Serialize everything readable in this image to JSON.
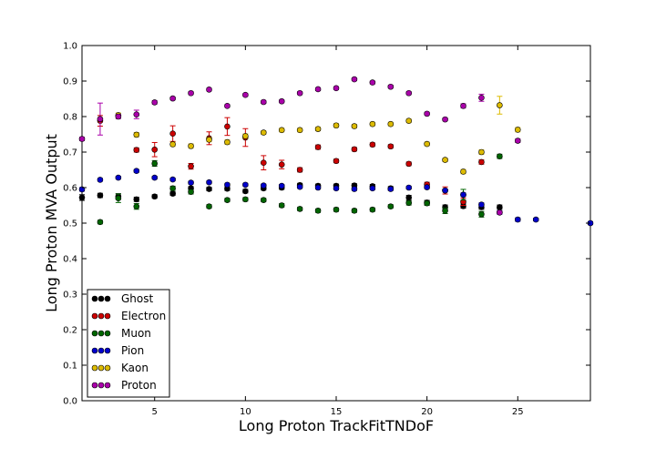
{
  "chart_data": {
    "type": "scatter",
    "title": "",
    "xlabel": "Long Proton TrackFitTNDoF",
    "ylabel": "Long Proton MVA Output",
    "xlim": [
      1,
      29
    ],
    "ylim": [
      0.0,
      1.0
    ],
    "xticks": [
      5,
      10,
      15,
      20,
      25
    ],
    "xtick_labels": [
      "5",
      "10",
      "15",
      "20",
      "25"
    ],
    "yticks": [
      0.0,
      0.1,
      0.2,
      0.3,
      0.4,
      0.5,
      0.6,
      0.7,
      0.8,
      0.9,
      1.0
    ],
    "ytick_labels": [
      "0.0",
      "0.1",
      "0.2",
      "0.3",
      "0.4",
      "0.5",
      "0.6",
      "0.7",
      "0.8",
      "0.9",
      "1.0"
    ],
    "grid": false,
    "legend": "lower-left",
    "series": [
      {
        "name": "Ghost",
        "color": "#000000",
        "points": [
          {
            "x": 1,
            "y": 0.572,
            "err": 0.008
          },
          {
            "x": 2,
            "y": 0.578,
            "err": 0.006
          },
          {
            "x": 3,
            "y": 0.575,
            "err": 0.008
          },
          {
            "x": 4,
            "y": 0.567,
            "err": 0.006
          },
          {
            "x": 5,
            "y": 0.575,
            "err": 0.005
          },
          {
            "x": 6,
            "y": 0.583,
            "err": 0.005
          },
          {
            "x": 7,
            "y": 0.598,
            "err": 0.005
          },
          {
            "x": 8,
            "y": 0.596,
            "err": 0.005
          },
          {
            "x": 9,
            "y": 0.597,
            "err": 0.005
          },
          {
            "x": 10,
            "y": 0.59,
            "err": 0.005
          },
          {
            "x": 11,
            "y": 0.598,
            "err": 0.005
          },
          {
            "x": 12,
            "y": 0.6,
            "err": 0.005
          },
          {
            "x": 13,
            "y": 0.607,
            "err": 0.005
          },
          {
            "x": 14,
            "y": 0.605,
            "err": 0.005
          },
          {
            "x": 15,
            "y": 0.605,
            "err": 0.005
          },
          {
            "x": 16,
            "y": 0.606,
            "err": 0.005
          },
          {
            "x": 17,
            "y": 0.604,
            "err": 0.005
          },
          {
            "x": 18,
            "y": 0.598,
            "err": 0.005
          },
          {
            "x": 19,
            "y": 0.572,
            "err": 0.006
          },
          {
            "x": 20,
            "y": 0.558,
            "err": 0.006
          },
          {
            "x": 21,
            "y": 0.545,
            "err": 0.006
          },
          {
            "x": 22,
            "y": 0.548,
            "err": 0.006
          },
          {
            "x": 23,
            "y": 0.545,
            "err": 0.006
          },
          {
            "x": 24,
            "y": 0.545,
            "err": 0.006
          }
        ]
      },
      {
        "name": "Electron",
        "color": "#cc0000",
        "points": [
          {
            "x": 2,
            "y": 0.788,
            "err": 0.015
          },
          {
            "x": 4,
            "y": 0.706,
            "err": 0.006
          },
          {
            "x": 5,
            "y": 0.707,
            "err": 0.02
          },
          {
            "x": 6,
            "y": 0.752,
            "err": 0.022
          },
          {
            "x": 7,
            "y": 0.66,
            "err": 0.008
          },
          {
            "x": 8,
            "y": 0.739,
            "err": 0.018
          },
          {
            "x": 9,
            "y": 0.772,
            "err": 0.025
          },
          {
            "x": 10,
            "y": 0.741,
            "err": 0.025
          },
          {
            "x": 11,
            "y": 0.67,
            "err": 0.02
          },
          {
            "x": 12,
            "y": 0.665,
            "err": 0.012
          },
          {
            "x": 13,
            "y": 0.65,
            "err": 0.006
          },
          {
            "x": 14,
            "y": 0.714,
            "err": 0.006
          },
          {
            "x": 15,
            "y": 0.675,
            "err": 0.005
          },
          {
            "x": 16,
            "y": 0.708,
            "err": 0.005
          },
          {
            "x": 17,
            "y": 0.721,
            "err": 0.005
          },
          {
            "x": 18,
            "y": 0.716,
            "err": 0.005
          },
          {
            "x": 19,
            "y": 0.667,
            "err": 0.005
          },
          {
            "x": 20,
            "y": 0.609,
            "err": 0.006
          },
          {
            "x": 21,
            "y": 0.592,
            "err": 0.01
          },
          {
            "x": 22,
            "y": 0.56,
            "err": 0.01
          },
          {
            "x": 23,
            "y": 0.672,
            "err": 0.006
          }
        ]
      },
      {
        "name": "Muon",
        "color": "#006600",
        "points": [
          {
            "x": 2,
            "y": 0.503,
            "err": 0.005
          },
          {
            "x": 3,
            "y": 0.57,
            "err": 0.012
          },
          {
            "x": 4,
            "y": 0.547,
            "err": 0.008
          },
          {
            "x": 5,
            "y": 0.668,
            "err": 0.008
          },
          {
            "x": 6,
            "y": 0.598,
            "err": 0.006
          },
          {
            "x": 7,
            "y": 0.588,
            "err": 0.006
          },
          {
            "x": 8,
            "y": 0.547,
            "err": 0.005
          },
          {
            "x": 9,
            "y": 0.565,
            "err": 0.005
          },
          {
            "x": 10,
            "y": 0.567,
            "err": 0.005
          },
          {
            "x": 11,
            "y": 0.565,
            "err": 0.005
          },
          {
            "x": 12,
            "y": 0.55,
            "err": 0.005
          },
          {
            "x": 13,
            "y": 0.54,
            "err": 0.005
          },
          {
            "x": 14,
            "y": 0.535,
            "err": 0.005
          },
          {
            "x": 15,
            "y": 0.538,
            "err": 0.005
          },
          {
            "x": 16,
            "y": 0.535,
            "err": 0.005
          },
          {
            "x": 17,
            "y": 0.538,
            "err": 0.005
          },
          {
            "x": 18,
            "y": 0.547,
            "err": 0.005
          },
          {
            "x": 19,
            "y": 0.557,
            "err": 0.006
          },
          {
            "x": 20,
            "y": 0.556,
            "err": 0.006
          },
          {
            "x": 21,
            "y": 0.535,
            "err": 0.008
          },
          {
            "x": 22,
            "y": 0.58,
            "err": 0.015
          },
          {
            "x": 23,
            "y": 0.525,
            "err": 0.008
          },
          {
            "x": 24,
            "y": 0.688,
            "err": 0.006
          }
        ]
      },
      {
        "name": "Pion",
        "color": "#0000cc",
        "points": [
          {
            "x": 1,
            "y": 0.595,
            "err": 0.005
          },
          {
            "x": 2,
            "y": 0.622,
            "err": 0.004
          },
          {
            "x": 3,
            "y": 0.628,
            "err": 0.004
          },
          {
            "x": 4,
            "y": 0.647,
            "err": 0.004
          },
          {
            "x": 5,
            "y": 0.628,
            "err": 0.004
          },
          {
            "x": 6,
            "y": 0.623,
            "err": 0.004
          },
          {
            "x": 7,
            "y": 0.614,
            "err": 0.004
          },
          {
            "x": 8,
            "y": 0.615,
            "err": 0.004
          },
          {
            "x": 9,
            "y": 0.608,
            "err": 0.004
          },
          {
            "x": 10,
            "y": 0.608,
            "err": 0.004
          },
          {
            "x": 11,
            "y": 0.606,
            "err": 0.004
          },
          {
            "x": 12,
            "y": 0.605,
            "err": 0.004
          },
          {
            "x": 13,
            "y": 0.602,
            "err": 0.004
          },
          {
            "x": 14,
            "y": 0.6,
            "err": 0.004
          },
          {
            "x": 15,
            "y": 0.598,
            "err": 0.004
          },
          {
            "x": 16,
            "y": 0.596,
            "err": 0.004
          },
          {
            "x": 17,
            "y": 0.598,
            "err": 0.004
          },
          {
            "x": 18,
            "y": 0.596,
            "err": 0.004
          },
          {
            "x": 19,
            "y": 0.6,
            "err": 0.004
          },
          {
            "x": 20,
            "y": 0.601,
            "err": 0.004
          },
          {
            "x": 21,
            "y": 0.592,
            "err": 0.004
          },
          {
            "x": 22,
            "y": 0.58,
            "err": 0.005
          },
          {
            "x": 23,
            "y": 0.552,
            "err": 0.005
          },
          {
            "x": 24,
            "y": 0.53,
            "err": 0.005
          },
          {
            "x": 25,
            "y": 0.51,
            "err": 0.005
          },
          {
            "x": 26,
            "y": 0.51,
            "err": 0.004
          },
          {
            "x": 29,
            "y": 0.5,
            "err": 0.004
          }
        ]
      },
      {
        "name": "Kaon",
        "color": "#ddbb00",
        "points": [
          {
            "x": 3,
            "y": 0.804,
            "err": 0.006
          },
          {
            "x": 4,
            "y": 0.749,
            "err": 0.006
          },
          {
            "x": 6,
            "y": 0.722,
            "err": 0.006
          },
          {
            "x": 7,
            "y": 0.717,
            "err": 0.006
          },
          {
            "x": 8,
            "y": 0.735,
            "err": 0.006
          },
          {
            "x": 9,
            "y": 0.728,
            "err": 0.006
          },
          {
            "x": 10,
            "y": 0.745,
            "err": 0.006
          },
          {
            "x": 11,
            "y": 0.755,
            "err": 0.005
          },
          {
            "x": 12,
            "y": 0.762,
            "err": 0.005
          },
          {
            "x": 13,
            "y": 0.762,
            "err": 0.005
          },
          {
            "x": 14,
            "y": 0.765,
            "err": 0.005
          },
          {
            "x": 15,
            "y": 0.775,
            "err": 0.005
          },
          {
            "x": 16,
            "y": 0.773,
            "err": 0.005
          },
          {
            "x": 17,
            "y": 0.779,
            "err": 0.005
          },
          {
            "x": 18,
            "y": 0.779,
            "err": 0.005
          },
          {
            "x": 19,
            "y": 0.788,
            "err": 0.005
          },
          {
            "x": 20,
            "y": 0.723,
            "err": 0.005
          },
          {
            "x": 21,
            "y": 0.678,
            "err": 0.005
          },
          {
            "x": 22,
            "y": 0.645,
            "err": 0.006
          },
          {
            "x": 23,
            "y": 0.7,
            "err": 0.006
          },
          {
            "x": 24,
            "y": 0.832,
            "err": 0.025
          },
          {
            "x": 25,
            "y": 0.763,
            "err": 0.006
          }
        ]
      },
      {
        "name": "Proton",
        "color": "#aa00aa",
        "points": [
          {
            "x": 1,
            "y": 0.737,
            "err": 0.005
          },
          {
            "x": 2,
            "y": 0.793,
            "err": 0.045
          },
          {
            "x": 3,
            "y": 0.8,
            "err": 0.006
          },
          {
            "x": 4,
            "y": 0.806,
            "err": 0.012
          },
          {
            "x": 5,
            "y": 0.84,
            "err": 0.005
          },
          {
            "x": 6,
            "y": 0.851,
            "err": 0.004
          },
          {
            "x": 7,
            "y": 0.866,
            "err": 0.004
          },
          {
            "x": 8,
            "y": 0.876,
            "err": 0.004
          },
          {
            "x": 9,
            "y": 0.83,
            "err": 0.004
          },
          {
            "x": 10,
            "y": 0.861,
            "err": 0.004
          },
          {
            "x": 11,
            "y": 0.841,
            "err": 0.004
          },
          {
            "x": 12,
            "y": 0.843,
            "err": 0.004
          },
          {
            "x": 13,
            "y": 0.866,
            "err": 0.004
          },
          {
            "x": 14,
            "y": 0.877,
            "err": 0.004
          },
          {
            "x": 15,
            "y": 0.88,
            "err": 0.004
          },
          {
            "x": 16,
            "y": 0.905,
            "err": 0.004
          },
          {
            "x": 17,
            "y": 0.896,
            "err": 0.004
          },
          {
            "x": 18,
            "y": 0.884,
            "err": 0.004
          },
          {
            "x": 19,
            "y": 0.866,
            "err": 0.004
          },
          {
            "x": 20,
            "y": 0.808,
            "err": 0.004
          },
          {
            "x": 21,
            "y": 0.792,
            "err": 0.004
          },
          {
            "x": 22,
            "y": 0.83,
            "err": 0.006
          },
          {
            "x": 23,
            "y": 0.853,
            "err": 0.01
          },
          {
            "x": 24,
            "y": 0.53,
            "err": 0.004
          },
          {
            "x": 25,
            "y": 0.732,
            "err": 0.005
          }
        ]
      }
    ]
  }
}
